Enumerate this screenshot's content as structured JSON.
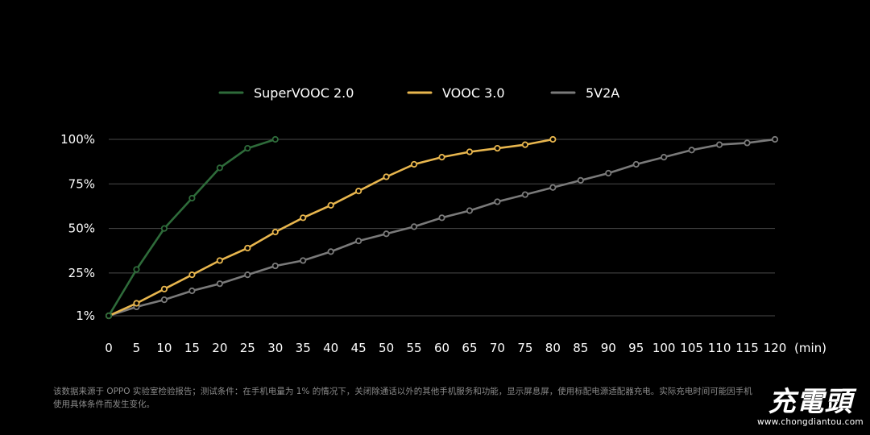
{
  "chart_data": {
    "type": "line",
    "title": "",
    "xlabel": "",
    "ylabel": "",
    "x_unit_label": "(min)",
    "x_ticks": [
      0,
      5,
      10,
      15,
      20,
      25,
      30,
      35,
      40,
      45,
      50,
      55,
      60,
      65,
      70,
      75,
      80,
      85,
      90,
      95,
      100,
      105,
      110,
      115,
      120
    ],
    "y_ticks": [
      {
        "value": 1,
        "label": "1%"
      },
      {
        "value": 25,
        "label": "25%"
      },
      {
        "value": 50,
        "label": "50%"
      },
      {
        "value": 75,
        "label": "75%"
      },
      {
        "value": 100,
        "label": "100%"
      }
    ],
    "xlim": [
      0,
      120
    ],
    "ylim": [
      1,
      100
    ],
    "grid": true,
    "legend_position": "top",
    "series": [
      {
        "name": "SuperVOOC 2.0",
        "color": "#2e6b3a",
        "x": [
          0,
          5,
          10,
          15,
          20,
          25,
          30
        ],
        "values": [
          1,
          27,
          50,
          67,
          84,
          95,
          100
        ]
      },
      {
        "name": "VOOC 3.0",
        "color": "#e8b64e",
        "x": [
          0,
          5,
          10,
          15,
          20,
          25,
          30,
          35,
          40,
          45,
          50,
          55,
          60,
          65,
          70,
          75,
          80
        ],
        "values": [
          1,
          8,
          16,
          24,
          32,
          39,
          48,
          56,
          63,
          71,
          79,
          86,
          90,
          93,
          95,
          97,
          100
        ]
      },
      {
        "name": "5V2A",
        "color": "#7a7a7a",
        "x": [
          0,
          5,
          10,
          15,
          20,
          25,
          30,
          35,
          40,
          45,
          50,
          55,
          60,
          65,
          70,
          75,
          80,
          85,
          90,
          95,
          100,
          105,
          110,
          115,
          120
        ],
        "values": [
          1,
          6,
          10,
          15,
          19,
          24,
          29,
          32,
          37,
          43,
          47,
          51,
          56,
          60,
          65,
          69,
          73,
          77,
          81,
          86,
          90,
          94,
          97,
          98,
          100
        ]
      }
    ]
  },
  "footnote": {
    "line1": "该数据来源于 OPPO 实验室检验报告；测试条件：在手机电量为 1% 的情况下，关闭除通话以外的其他手机服务和功能，显示屏息屏，使用标配电源适配器充电。实际充电时间可能因手机",
    "line2": "使用具体条件而发生变化。"
  },
  "watermark": {
    "logo": "充電頭",
    "url": "www.chongdiantou.com"
  }
}
